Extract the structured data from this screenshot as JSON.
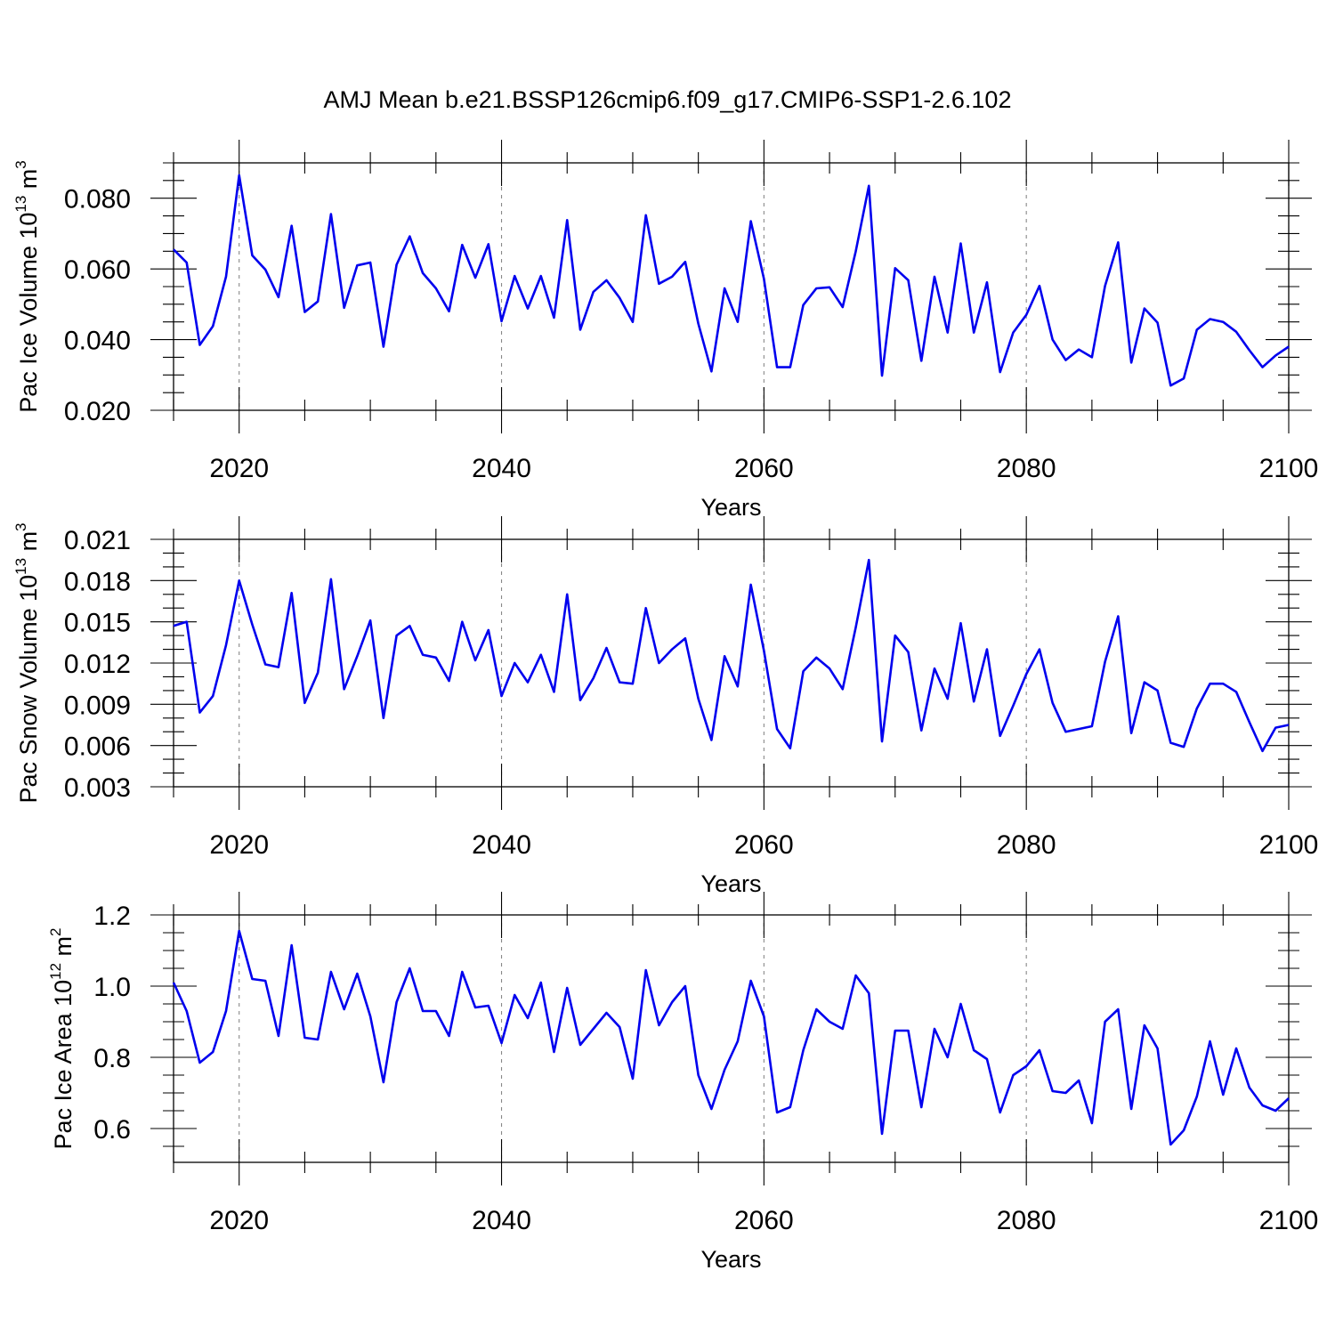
{
  "title": "AMJ Mean b.e21.BSSP126cmip6.f09_g17.CMIP6-SSP1-2.6.102",
  "chart_data": [
    {
      "type": "line",
      "ylabel": "Pac Ice Volume 10",
      "ylabel_exp": "13",
      "ylabel_unit": " m",
      "ylabel_unit_exp": "3",
      "xlabel": "Years",
      "xlim": [
        2015,
        2100
      ],
      "ylim": [
        0.02,
        0.09
      ],
      "xticks": [
        2020,
        2040,
        2060,
        2080,
        2100
      ],
      "xtick_labels": [
        "2020",
        "2040",
        "2060",
        "2080",
        "2100"
      ],
      "yticks": [
        0.02,
        0.04,
        0.06,
        0.08
      ],
      "ytick_labels": [
        "0.020",
        "0.040",
        "0.060",
        "0.080"
      ],
      "ymin_step": 0.005,
      "grid": "x-dashed",
      "color": "#0000ee",
      "x_start": 2015,
      "values": [
        0.0655,
        0.0618,
        0.0385,
        0.0438,
        0.0578,
        0.0865,
        0.0638,
        0.0598,
        0.052,
        0.0722,
        0.0478,
        0.0508,
        0.0755,
        0.049,
        0.061,
        0.0618,
        0.038,
        0.0612,
        0.0692,
        0.0588,
        0.0545,
        0.048,
        0.0668,
        0.0575,
        0.067,
        0.0452,
        0.058,
        0.0488,
        0.058,
        0.0462,
        0.0738,
        0.0428,
        0.0535,
        0.0568,
        0.0518,
        0.045,
        0.0752,
        0.0558,
        0.0578,
        0.062,
        0.0445,
        0.031,
        0.0545,
        0.045,
        0.0735,
        0.0572,
        0.0322,
        0.0322,
        0.0498,
        0.0545,
        0.0548,
        0.0492,
        0.065,
        0.0835,
        0.0298,
        0.0602,
        0.0568,
        0.034,
        0.0578,
        0.042,
        0.0672,
        0.042,
        0.0562,
        0.0308,
        0.042,
        0.047,
        0.0552,
        0.04,
        0.0342,
        0.0372,
        0.035,
        0.0552,
        0.0675,
        0.0335,
        0.0488,
        0.0448,
        0.027,
        0.029,
        0.0428,
        0.0458,
        0.045,
        0.0422,
        0.037,
        0.0322,
        0.0355,
        0.038
      ]
    },
    {
      "type": "line",
      "ylabel": "Pac Snow Volume 10",
      "ylabel_exp": "13",
      "ylabel_unit": " m",
      "ylabel_unit_exp": "3",
      "xlabel": "Years",
      "xlim": [
        2015,
        2100
      ],
      "ylim": [
        0.003,
        0.021
      ],
      "xticks": [
        2020,
        2040,
        2060,
        2080,
        2100
      ],
      "xtick_labels": [
        "2020",
        "2040",
        "2060",
        "2080",
        "2100"
      ],
      "yticks": [
        0.003,
        0.006,
        0.009,
        0.012,
        0.015,
        0.018,
        0.021
      ],
      "ytick_labels": [
        "0.003",
        "0.006",
        "0.009",
        "0.012",
        "0.015",
        "0.018",
        "0.021"
      ],
      "ymin_step": 0.001,
      "grid": "x-dashed",
      "color": "#0000ee",
      "x_start": 2015,
      "values": [
        0.0147,
        0.015,
        0.0084,
        0.0096,
        0.0133,
        0.018,
        0.0148,
        0.0119,
        0.0117,
        0.0171,
        0.0091,
        0.0113,
        0.0181,
        0.0101,
        0.0125,
        0.0151,
        0.008,
        0.014,
        0.0147,
        0.0126,
        0.0124,
        0.0107,
        0.015,
        0.0122,
        0.0144,
        0.0096,
        0.012,
        0.0106,
        0.0126,
        0.0099,
        0.017,
        0.0093,
        0.0109,
        0.0131,
        0.0106,
        0.0105,
        0.016,
        0.012,
        0.013,
        0.0138,
        0.0094,
        0.0064,
        0.0125,
        0.0103,
        0.0177,
        0.0129,
        0.0072,
        0.0058,
        0.0114,
        0.0124,
        0.0116,
        0.0101,
        0.0146,
        0.0195,
        0.0063,
        0.014,
        0.0128,
        0.0071,
        0.0116,
        0.0094,
        0.0149,
        0.0092,
        0.013,
        0.0067,
        0.0089,
        0.0112,
        0.013,
        0.0091,
        0.007,
        0.0072,
        0.0074,
        0.0121,
        0.0154,
        0.0069,
        0.0106,
        0.01,
        0.0062,
        0.0059,
        0.0087,
        0.0105,
        0.0105,
        0.0099,
        0.0077,
        0.0056,
        0.0073,
        0.0075
      ]
    },
    {
      "type": "line",
      "ylabel": "Pac Ice Area 10",
      "ylabel_exp": "12",
      "ylabel_unit": " m",
      "ylabel_unit_exp": "2",
      "xlabel": "Years",
      "xlim": [
        2015,
        2100
      ],
      "ylim": [
        0.505,
        1.2
      ],
      "xticks": [
        2020,
        2040,
        2060,
        2080,
        2100
      ],
      "xtick_labels": [
        "2020",
        "2040",
        "2060",
        "2080",
        "2100"
      ],
      "yticks": [
        0.6,
        0.8,
        1.0,
        1.2
      ],
      "ytick_labels": [
        "0.6",
        "0.8",
        "1.0",
        "1.2"
      ],
      "ymin_step": 0.05,
      "grid": "x-dashed",
      "color": "#0000ee",
      "x_start": 2015,
      "values": [
        1.01,
        0.93,
        0.785,
        0.815,
        0.93,
        1.155,
        1.02,
        1.015,
        0.86,
        1.115,
        0.855,
        0.85,
        1.04,
        0.935,
        1.035,
        0.915,
        0.73,
        0.955,
        1.05,
        0.93,
        0.93,
        0.86,
        1.04,
        0.94,
        0.945,
        0.84,
        0.975,
        0.91,
        1.01,
        0.815,
        0.995,
        0.835,
        0.88,
        0.925,
        0.885,
        0.74,
        1.045,
        0.89,
        0.955,
        1.0,
        0.75,
        0.655,
        0.765,
        0.845,
        1.015,
        0.915,
        0.645,
        0.66,
        0.82,
        0.935,
        0.9,
        0.88,
        1.03,
        0.98,
        0.585,
        0.875,
        0.875,
        0.66,
        0.88,
        0.8,
        0.95,
        0.82,
        0.795,
        0.645,
        0.75,
        0.775,
        0.82,
        0.705,
        0.7,
        0.735,
        0.615,
        0.9,
        0.935,
        0.655,
        0.89,
        0.825,
        0.555,
        0.595,
        0.69,
        0.845,
        0.695,
        0.825,
        0.715,
        0.665,
        0.65,
        0.685
      ]
    }
  ]
}
